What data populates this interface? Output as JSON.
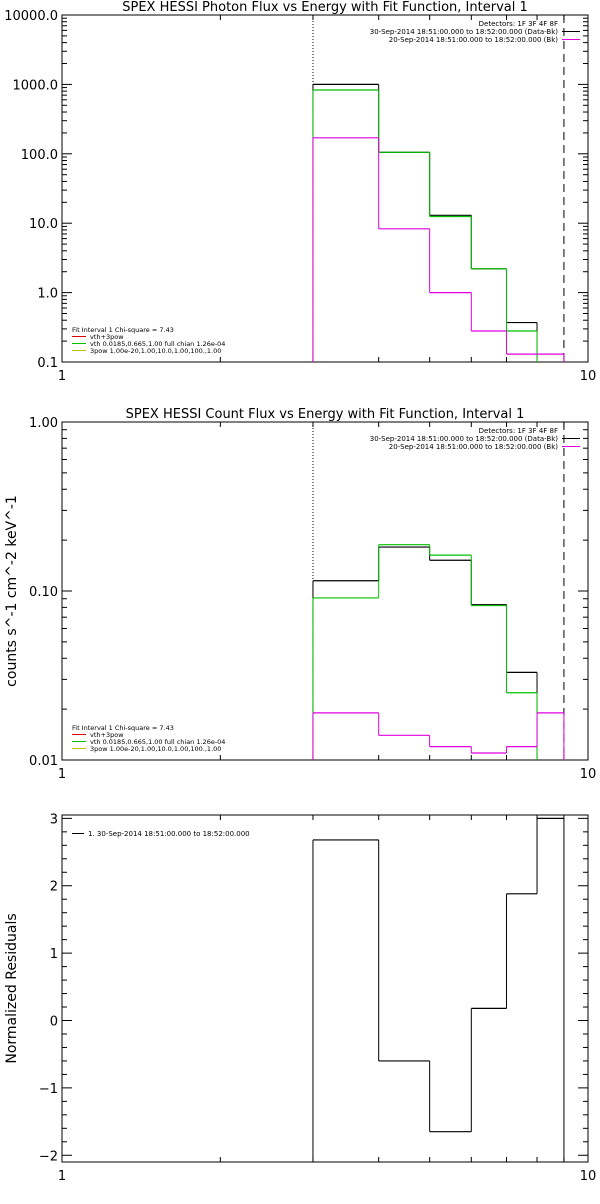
{
  "chart_data": [
    {
      "type": "line",
      "step": true,
      "title": "SPEX HESSI Photon Flux vs Energy with Fit Function, Interval 1",
      "xlabel": "",
      "ylabel": "",
      "xscale": "log",
      "yscale": "log",
      "xlim": [
        1,
        10
      ],
      "ylim": [
        0.1,
        10000.0
      ],
      "x_ticks": [
        "1",
        "10"
      ],
      "y_ticks": [
        "0.1",
        "1.0",
        "10.0",
        "100.0",
        "1000.0",
        "10000.0"
      ],
      "vlines": [
        {
          "x": 3.0,
          "style": "dotted"
        },
        {
          "x": 9.0,
          "style": "dashed"
        }
      ],
      "legend_top": {
        "header": "Detectors: 1F 3F 4F 8F",
        "entries": [
          {
            "text": "30-Sep-2014 18:51:00.000 to 18:52:00.000 (Data-Bk)",
            "color": "#000000"
          },
          {
            "text": "20-Sep-2014 18:51:00.000 to 18:52:00.000 (Bk)",
            "color": "#e000e0"
          }
        ]
      },
      "legend_bottom": {
        "header": "Fit Interval 1   Chi-square = 7.43",
        "entries": [
          {
            "text": "vth+3pow",
            "color": "#e00000"
          },
          {
            "text": "vth 0.0185,0.665,1.00  full chian 1.26e-04",
            "color": "#00c000"
          },
          {
            "text": "3pow 1.00e-20,1.00,10.0,1.00,100.,1.00",
            "color": "#c0c000"
          }
        ]
      },
      "bin_edges": [
        3.0,
        4.0,
        5.0,
        6.0,
        7.0,
        8.0,
        9.0
      ],
      "series": [
        {
          "color": "#000000",
          "values": [
            1000,
            105,
            13,
            2.2,
            0.37,
            null
          ]
        },
        {
          "color": "#00c000",
          "values": [
            830,
            105,
            12.5,
            2.2,
            0.28,
            null
          ]
        },
        {
          "color": "#e000e0",
          "values": [
            170,
            8.3,
            1.0,
            0.28,
            0.13,
            0.13
          ]
        }
      ]
    },
    {
      "type": "line",
      "step": true,
      "title": "SPEX HESSI Count Flux vs Energy with Fit Function, Interval 1",
      "xlabel": "",
      "ylabel": "counts s^-1 cm^-2 keV^-1",
      "xscale": "log",
      "yscale": "log",
      "xlim": [
        1,
        10
      ],
      "ylim": [
        0.01,
        1.0
      ],
      "x_ticks": [
        "1",
        "10"
      ],
      "y_ticks": [
        "0.01",
        "0.10",
        "1.00"
      ],
      "vlines": [
        {
          "x": 3.0,
          "style": "dotted"
        },
        {
          "x": 9.0,
          "style": "dashed"
        }
      ],
      "legend_top": {
        "header": "Detectors: 1F 3F 4F 8F",
        "entries": [
          {
            "text": "30-Sep-2014 18:51:00.000 to 18:52:00.000 (Data-Bk)",
            "color": "#000000"
          },
          {
            "text": "20-Sep-2014 18:51:00.000 to 18:52:00.000 (Bk)",
            "color": "#e000e0"
          }
        ]
      },
      "legend_bottom": {
        "header": "Fit Interval 1   Chi-square = 7.43",
        "entries": [
          {
            "text": "vth+3pow",
            "color": "#e00000"
          },
          {
            "text": "vth 0.0185,0.665,1.00  full chian 1.26e-04",
            "color": "#00c000"
          },
          {
            "text": "3pow 1.00e-20,1.00,10.0,1.00,100.,1.00",
            "color": "#c0c000"
          }
        ]
      },
      "bin_edges": [
        3.0,
        4.0,
        5.0,
        6.0,
        7.0,
        8.0,
        9.0
      ],
      "series": [
        {
          "color": "#000000",
          "values": [
            0.115,
            0.182,
            0.152,
            0.083,
            0.033,
            null
          ]
        },
        {
          "color": "#00c000",
          "values": [
            0.091,
            0.188,
            0.163,
            0.082,
            0.025,
            null
          ]
        },
        {
          "color": "#e000e0",
          "values": [
            0.019,
            0.014,
            0.012,
            0.011,
            0.012,
            0.019
          ]
        }
      ]
    },
    {
      "type": "line",
      "step": true,
      "title": "",
      "xlabel": "",
      "ylabel": "Normalized Residuals",
      "xscale": "log",
      "yscale": "linear",
      "xlim": [
        1,
        10
      ],
      "ylim": [
        -2.1,
        3.05
      ],
      "x_ticks": [
        "1",
        "10"
      ],
      "y_ticks": [
        "-2",
        "-1",
        "0",
        "1",
        "2",
        "3"
      ],
      "legend": {
        "entries": [
          {
            "text": "1. 30-Sep-2014 18:51:00.000 to 18:52:00.000",
            "color": "#000000"
          }
        ]
      },
      "bin_edges": [
        3.0,
        4.0,
        5.0,
        6.0,
        7.0,
        8.0,
        9.0
      ],
      "series": [
        {
          "color": "#000000",
          "values": [
            2.68,
            -0.6,
            -1.65,
            0.18,
            1.88,
            3.0
          ]
        }
      ]
    }
  ]
}
